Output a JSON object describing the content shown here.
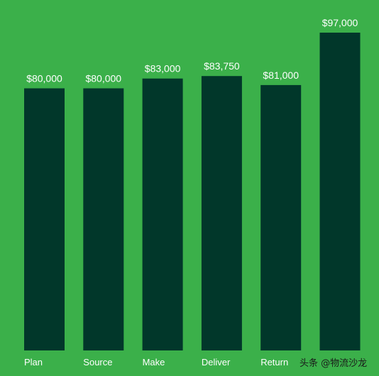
{
  "chart_data": {
    "type": "bar",
    "title": "",
    "xlabel": "",
    "ylabel": "",
    "categories": [
      "Plan",
      "Source",
      "Make",
      "Deliver",
      "Return",
      ""
    ],
    "values": [
      80000,
      80000,
      83000,
      83750,
      81000,
      97000
    ],
    "value_labels": [
      "$80,000",
      "$80,000",
      "$83,000",
      "$83,750",
      "$81,000",
      "$97,000"
    ],
    "ylim": [
      0,
      97000
    ],
    "grid": false,
    "legend": "none",
    "colors": {
      "background": "#3bb04a",
      "bar": "#01372a",
      "text": "#ffffff"
    }
  },
  "watermark": "头条 @物流沙龙"
}
